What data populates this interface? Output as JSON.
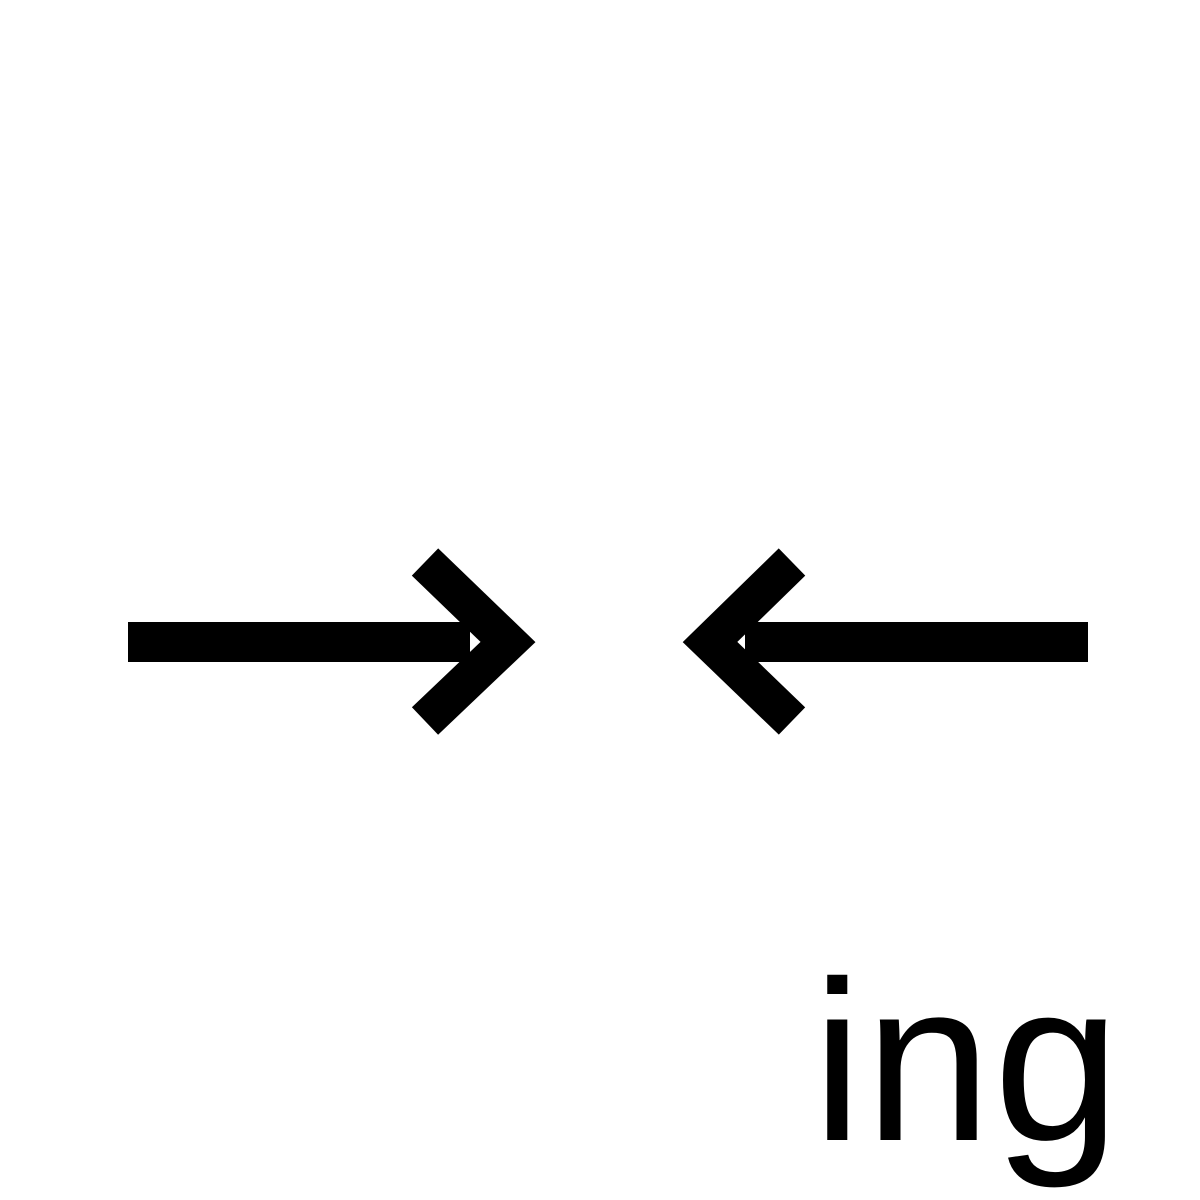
{
  "symbol": {
    "left_arrow_icon": "arrow-right-icon",
    "right_arrow_icon": "arrow-left-icon",
    "color": "#000000"
  },
  "suffix": {
    "text": "ing"
  },
  "background": "#ffffff"
}
